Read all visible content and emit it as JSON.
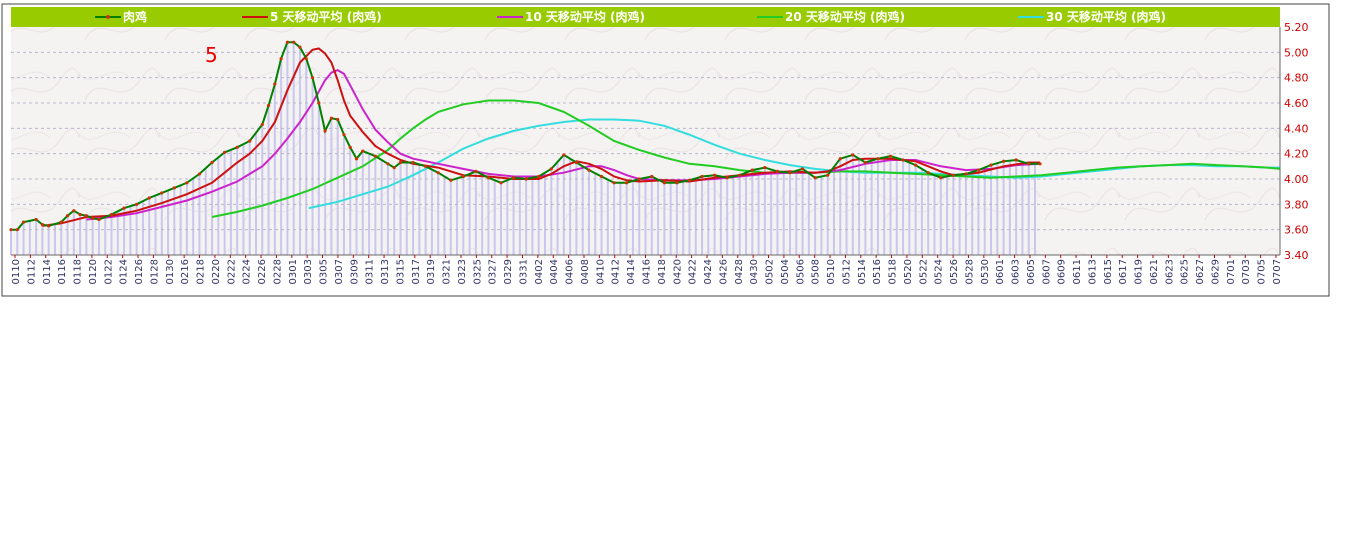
{
  "chart_data": {
    "type": "line",
    "title": "",
    "xlabel": "",
    "ylabel": "",
    "ylim": [
      3.4,
      5.2
    ],
    "y_ticks": [
      "3.40",
      "3.60",
      "3.80",
      "4.00",
      "4.20",
      "4.40",
      "4.60",
      "4.80",
      "5.00",
      "5.20"
    ],
    "annotation": "5",
    "x_tick_labels": [
      "0110",
      "0112",
      "0114",
      "0116",
      "0118",
      "0120",
      "0122",
      "0124",
      "0126",
      "0128",
      "0130",
      "0216",
      "0218",
      "0220",
      "0222",
      "0224",
      "0226",
      "0228",
      "0301",
      "0303",
      "0305",
      "0307",
      "0309",
      "0311",
      "0313",
      "0315",
      "0317",
      "0319",
      "0321",
      "0323",
      "0325",
      "0327",
      "0329",
      "0331",
      "0402",
      "0404",
      "0406",
      "0408",
      "0410",
      "0412",
      "0414",
      "0416",
      "0418",
      "0420",
      "0422",
      "0424",
      "0426",
      "0428",
      "0430",
      "0502",
      "0504",
      "0506",
      "0508",
      "0510",
      "0512",
      "0514",
      "0516",
      "0518",
      "0520",
      "0522",
      "0524",
      "0526",
      "0528",
      "0530",
      "0601",
      "0603",
      "0605",
      "0607",
      "0609",
      "0611",
      "0613",
      "0615",
      "0617",
      "0619",
      "0621",
      "0623",
      "0625",
      "0627",
      "0629",
      "0701",
      "0703",
      "0705",
      "0707"
    ],
    "x_start": "0110",
    "x_end": "0707",
    "grid": true,
    "legend_position": "top",
    "background_bars": true,
    "colors": {
      "header_band": "#99cc00",
      "plot_bg": "#f5f2f2",
      "grid": "#b9b9c9",
      "axis_text": "#cc0000",
      "x_text": "#333366",
      "bars": "#c9c7ee",
      "annotation": "#ee0000"
    },
    "series": [
      {
        "name": "肉鸡",
        "color": "#008000",
        "marker_color": "#cc3300",
        "markers": true,
        "points": [
          [
            0,
            3.6
          ],
          [
            5,
            3.6
          ],
          [
            10,
            3.66
          ],
          [
            20,
            3.68
          ],
          [
            25,
            3.64
          ],
          [
            30,
            3.63
          ],
          [
            40,
            3.66
          ],
          [
            45,
            3.71
          ],
          [
            50,
            3.75
          ],
          [
            55,
            3.72
          ],
          [
            60,
            3.71
          ],
          [
            65,
            3.69
          ],
          [
            70,
            3.68
          ],
          [
            80,
            3.72
          ],
          [
            90,
            3.77
          ],
          [
            100,
            3.8
          ],
          [
            110,
            3.85
          ],
          [
            120,
            3.89
          ],
          [
            130,
            3.93
          ],
          [
            140,
            3.97
          ],
          [
            150,
            4.04
          ],
          [
            160,
            4.13
          ],
          [
            170,
            4.21
          ],
          [
            180,
            4.25
          ],
          [
            190,
            4.3
          ],
          [
            200,
            4.43
          ],
          [
            205,
            4.58
          ],
          [
            210,
            4.75
          ],
          [
            215,
            4.95
          ],
          [
            220,
            5.08
          ],
          [
            225,
            5.08
          ],
          [
            230,
            5.04
          ],
          [
            235,
            4.95
          ],
          [
            240,
            4.8
          ],
          [
            245,
            4.6
          ],
          [
            250,
            4.38
          ],
          [
            255,
            4.48
          ],
          [
            260,
            4.47
          ],
          [
            265,
            4.35
          ],
          [
            270,
            4.25
          ],
          [
            275,
            4.16
          ],
          [
            280,
            4.22
          ],
          [
            290,
            4.18
          ],
          [
            300,
            4.12
          ],
          [
            305,
            4.09
          ],
          [
            310,
            4.13
          ],
          [
            320,
            4.13
          ],
          [
            330,
            4.1
          ],
          [
            340,
            4.05
          ],
          [
            350,
            3.99
          ],
          [
            360,
            4.02
          ],
          [
            370,
            4.06
          ],
          [
            380,
            4.01
          ],
          [
            390,
            3.97
          ],
          [
            400,
            4.01
          ],
          [
            410,
            4.0
          ],
          [
            420,
            4.02
          ],
          [
            430,
            4.08
          ],
          [
            440,
            4.19
          ],
          [
            450,
            4.13
          ],
          [
            460,
            4.07
          ],
          [
            470,
            4.02
          ],
          [
            480,
            3.97
          ],
          [
            490,
            3.97
          ],
          [
            500,
            4.0
          ],
          [
            510,
            4.02
          ],
          [
            520,
            3.97
          ],
          [
            530,
            3.97
          ],
          [
            540,
            3.99
          ],
          [
            550,
            4.02
          ],
          [
            560,
            4.03
          ],
          [
            570,
            4.01
          ],
          [
            580,
            4.03
          ],
          [
            590,
            4.07
          ],
          [
            600,
            4.09
          ],
          [
            610,
            4.06
          ],
          [
            620,
            4.05
          ],
          [
            630,
            4.08
          ],
          [
            640,
            4.01
          ],
          [
            650,
            4.03
          ],
          [
            660,
            4.16
          ],
          [
            670,
            4.19
          ],
          [
            680,
            4.13
          ],
          [
            690,
            4.16
          ],
          [
            700,
            4.18
          ],
          [
            710,
            4.15
          ],
          [
            720,
            4.11
          ],
          [
            730,
            4.05
          ],
          [
            740,
            4.01
          ],
          [
            750,
            4.03
          ],
          [
            760,
            4.04
          ],
          [
            770,
            4.07
          ],
          [
            780,
            4.11
          ],
          [
            790,
            4.14
          ],
          [
            800,
            4.15
          ],
          [
            810,
            4.12
          ],
          [
            819,
            4.12
          ]
        ]
      },
      {
        "name": "5 天移动平均 (肉鸡)",
        "color": "#cc1111",
        "points": [
          [
            25,
            3.63
          ],
          [
            40,
            3.65
          ],
          [
            60,
            3.7
          ],
          [
            80,
            3.71
          ],
          [
            100,
            3.75
          ],
          [
            120,
            3.81
          ],
          [
            140,
            3.88
          ],
          [
            160,
            3.97
          ],
          [
            170,
            4.05
          ],
          [
            180,
            4.13
          ],
          [
            190,
            4.2
          ],
          [
            200,
            4.3
          ],
          [
            210,
            4.45
          ],
          [
            220,
            4.7
          ],
          [
            230,
            4.92
          ],
          [
            240,
            5.02
          ],
          [
            245,
            5.03
          ],
          [
            250,
            4.99
          ],
          [
            255,
            4.92
          ],
          [
            260,
            4.78
          ],
          [
            265,
            4.62
          ],
          [
            270,
            4.5
          ],
          [
            280,
            4.37
          ],
          [
            290,
            4.26
          ],
          [
            300,
            4.2
          ],
          [
            310,
            4.15
          ],
          [
            320,
            4.12
          ],
          [
            340,
            4.09
          ],
          [
            360,
            4.03
          ],
          [
            380,
            4.02
          ],
          [
            400,
            4.0
          ],
          [
            420,
            4.0
          ],
          [
            430,
            4.04
          ],
          [
            440,
            4.1
          ],
          [
            450,
            4.14
          ],
          [
            460,
            4.12
          ],
          [
            470,
            4.08
          ],
          [
            480,
            4.02
          ],
          [
            490,
            3.99
          ],
          [
            500,
            3.98
          ],
          [
            520,
            3.99
          ],
          [
            540,
            3.98
          ],
          [
            560,
            4.01
          ],
          [
            580,
            4.03
          ],
          [
            600,
            4.05
          ],
          [
            620,
            4.06
          ],
          [
            640,
            4.05
          ],
          [
            650,
            4.06
          ],
          [
            660,
            4.1
          ],
          [
            670,
            4.15
          ],
          [
            680,
            4.16
          ],
          [
            700,
            4.16
          ],
          [
            720,
            4.14
          ],
          [
            730,
            4.1
          ],
          [
            740,
            4.06
          ],
          [
            750,
            4.03
          ],
          [
            770,
            4.05
          ],
          [
            790,
            4.1
          ],
          [
            810,
            4.13
          ],
          [
            819,
            4.13
          ]
        ]
      },
      {
        "name": "10 天移动平均 (肉鸡)",
        "color": "#cc22cc",
        "points": [
          [
            60,
            3.68
          ],
          [
            80,
            3.7
          ],
          [
            100,
            3.73
          ],
          [
            120,
            3.78
          ],
          [
            140,
            3.83
          ],
          [
            160,
            3.9
          ],
          [
            180,
            3.98
          ],
          [
            200,
            4.1
          ],
          [
            210,
            4.2
          ],
          [
            220,
            4.32
          ],
          [
            230,
            4.45
          ],
          [
            240,
            4.6
          ],
          [
            250,
            4.78
          ],
          [
            255,
            4.84
          ],
          [
            260,
            4.86
          ],
          [
            265,
            4.83
          ],
          [
            270,
            4.74
          ],
          [
            280,
            4.55
          ],
          [
            290,
            4.39
          ],
          [
            300,
            4.29
          ],
          [
            310,
            4.2
          ],
          [
            320,
            4.16
          ],
          [
            340,
            4.12
          ],
          [
            360,
            4.08
          ],
          [
            380,
            4.04
          ],
          [
            400,
            4.02
          ],
          [
            420,
            4.02
          ],
          [
            440,
            4.05
          ],
          [
            460,
            4.1
          ],
          [
            470,
            4.1
          ],
          [
            480,
            4.07
          ],
          [
            490,
            4.03
          ],
          [
            500,
            4.0
          ],
          [
            520,
            3.99
          ],
          [
            540,
            3.99
          ],
          [
            560,
            4.0
          ],
          [
            580,
            4.02
          ],
          [
            600,
            4.04
          ],
          [
            620,
            4.05
          ],
          [
            640,
            4.05
          ],
          [
            660,
            4.07
          ],
          [
            680,
            4.12
          ],
          [
            700,
            4.15
          ],
          [
            720,
            4.15
          ],
          [
            740,
            4.1
          ],
          [
            760,
            4.07
          ],
          [
            780,
            4.08
          ],
          [
            800,
            4.11
          ],
          [
            819,
            4.12
          ]
        ]
      },
      {
        "name": "20 天移动平均 (肉鸡)",
        "color": "#22cc22",
        "points": [
          [
            160,
            3.7
          ],
          [
            180,
            3.74
          ],
          [
            200,
            3.79
          ],
          [
            220,
            3.85
          ],
          [
            240,
            3.92
          ],
          [
            260,
            4.01
          ],
          [
            280,
            4.1
          ],
          [
            300,
            4.23
          ],
          [
            310,
            4.32
          ],
          [
            320,
            4.4
          ],
          [
            330,
            4.47
          ],
          [
            340,
            4.53
          ],
          [
            360,
            4.59
          ],
          [
            380,
            4.62
          ],
          [
            400,
            4.62
          ],
          [
            420,
            4.6
          ],
          [
            440,
            4.53
          ],
          [
            460,
            4.42
          ],
          [
            480,
            4.3
          ],
          [
            500,
            4.23
          ],
          [
            520,
            4.17
          ],
          [
            540,
            4.12
          ],
          [
            560,
            4.1
          ],
          [
            580,
            4.07
          ],
          [
            600,
            4.05
          ],
          [
            620,
            4.05
          ],
          [
            640,
            4.05
          ],
          [
            660,
            4.06
          ],
          [
            680,
            4.06
          ],
          [
            700,
            4.05
          ],
          [
            720,
            4.04
          ],
          [
            740,
            4.03
          ],
          [
            760,
            4.02
          ],
          [
            780,
            4.01
          ],
          [
            800,
            4.02
          ],
          [
            820,
            4.03
          ],
          [
            840,
            4.05
          ],
          [
            860,
            4.07
          ],
          [
            880,
            4.09
          ],
          [
            900,
            4.1
          ],
          [
            920,
            4.11
          ],
          [
            940,
            4.12
          ],
          [
            960,
            4.11
          ],
          [
            980,
            4.1
          ],
          [
            1000,
            4.09
          ],
          [
            1010,
            4.08
          ]
        ]
      },
      {
        "name": "30 天移动平均 (肉鸡)",
        "color": "#33dddd",
        "points": [
          [
            237,
            3.77
          ],
          [
            260,
            3.82
          ],
          [
            280,
            3.88
          ],
          [
            300,
            3.94
          ],
          [
            320,
            4.03
          ],
          [
            340,
            4.13
          ],
          [
            360,
            4.24
          ],
          [
            380,
            4.32
          ],
          [
            400,
            4.38
          ],
          [
            420,
            4.42
          ],
          [
            440,
            4.45
          ],
          [
            460,
            4.47
          ],
          [
            480,
            4.47
          ],
          [
            500,
            4.46
          ],
          [
            520,
            4.42
          ],
          [
            540,
            4.35
          ],
          [
            560,
            4.27
          ],
          [
            580,
            4.2
          ],
          [
            600,
            4.15
          ],
          [
            620,
            4.11
          ],
          [
            640,
            4.08
          ],
          [
            660,
            4.06
          ],
          [
            680,
            4.05
          ],
          [
            700,
            4.05
          ],
          [
            720,
            4.05
          ],
          [
            740,
            4.04
          ],
          [
            760,
            4.03
          ],
          [
            780,
            4.02
          ],
          [
            800,
            4.01
          ],
          [
            820,
            4.02
          ],
          [
            840,
            4.04
          ],
          [
            860,
            4.06
          ],
          [
            880,
            4.08
          ],
          [
            900,
            4.1
          ],
          [
            920,
            4.11
          ],
          [
            940,
            4.11
          ],
          [
            960,
            4.1
          ],
          [
            980,
            4.1
          ],
          [
            1000,
            4.09
          ],
          [
            1010,
            4.09
          ]
        ]
      }
    ]
  }
}
